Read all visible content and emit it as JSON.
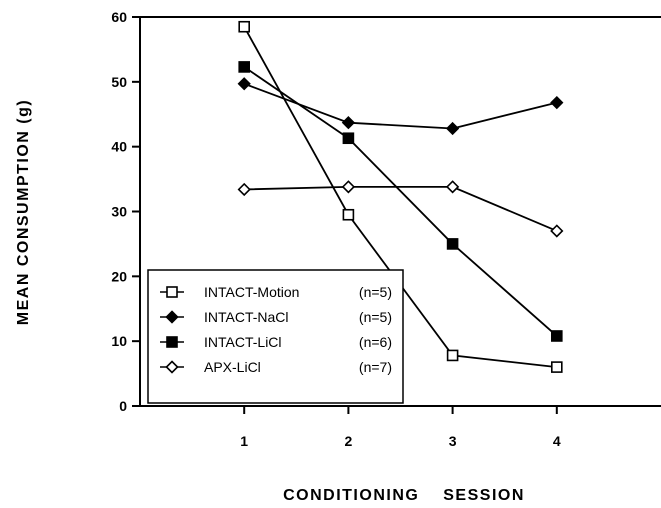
{
  "chart_data": {
    "type": "line",
    "xlabel": "CONDITIONING SESSION",
    "ylabel": "MEAN CONSUMPTION (g)",
    "x": [
      1,
      2,
      3,
      4
    ],
    "xticks": [
      "1",
      "2",
      "3",
      "4"
    ],
    "xlim": [
      0,
      5
    ],
    "ylim": [
      0,
      60
    ],
    "yticks": [
      "0",
      "10",
      "20",
      "30",
      "40",
      "50",
      "60"
    ],
    "grid": false,
    "legend_position": "bottom-left",
    "series": [
      {
        "name": "INTACT-Motion",
        "n": "(n=5)",
        "marker": "open-square",
        "values": [
          58.5,
          29.5,
          7.8,
          6.0
        ]
      },
      {
        "name": "INTACT-NaCl",
        "n": "(n=5)",
        "marker": "filled-diamond",
        "values": [
          49.7,
          43.7,
          42.8,
          46.8
        ]
      },
      {
        "name": "INTACT-LiCl",
        "n": "(n=6)",
        "marker": "filled-square",
        "values": [
          52.3,
          41.3,
          25.0,
          10.8
        ]
      },
      {
        "name": "APX-LiCl",
        "n": "(n=7)",
        "marker": "open-diamond",
        "values": [
          33.4,
          33.8,
          33.8,
          27.0
        ]
      }
    ]
  }
}
